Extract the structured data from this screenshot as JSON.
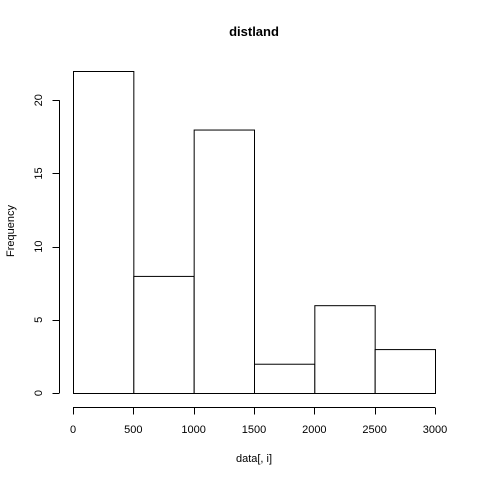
{
  "chart_data": {
    "type": "bar",
    "title": "distland",
    "xlabel": "data[, i]",
    "ylabel": "Frequency",
    "bins": [
      {
        "start": 0,
        "end": 500,
        "count": 22
      },
      {
        "start": 500,
        "end": 1000,
        "count": 8
      },
      {
        "start": 1000,
        "end": 1500,
        "count": 18
      },
      {
        "start": 1500,
        "end": 2000,
        "count": 2
      },
      {
        "start": 2000,
        "end": 2500,
        "count": 6
      },
      {
        "start": 2500,
        "end": 3000,
        "count": 3
      }
    ],
    "xlim": [
      0,
      3000
    ],
    "ylim": [
      0,
      22
    ],
    "xticks": [
      0,
      500,
      1000,
      1500,
      2000,
      2500,
      3000
    ],
    "yticks": [
      0,
      5,
      10,
      15,
      20
    ],
    "grid": false,
    "legend": "none"
  }
}
